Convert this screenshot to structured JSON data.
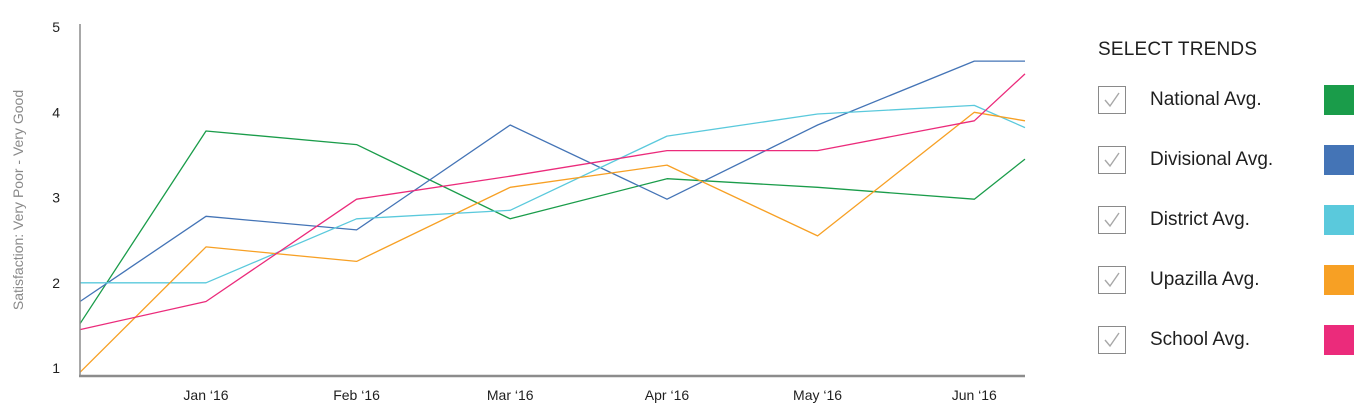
{
  "chart_data": {
    "type": "line",
    "ylabel": "Satisfaction: Very Poor - Very Good",
    "ylim": [
      1,
      5
    ],
    "yticks": [
      "1",
      "2",
      "3",
      "4",
      "5"
    ],
    "xlim": [
      0,
      6.15
    ],
    "categories": [
      "",
      "Jan ‘16",
      "Feb ‘16",
      "Mar ‘16",
      "Apr ‘16",
      "May ‘16",
      "Jun ‘16",
      ""
    ],
    "x": [
      0,
      0.82,
      1.8,
      2.8,
      3.82,
      4.8,
      5.82,
      6.15
    ],
    "grid": false,
    "legend_position": "right",
    "series": [
      {
        "name": "National Avg.",
        "color": "#1a9c4a",
        "values": [
          1.52,
          3.78,
          3.62,
          2.75,
          3.22,
          3.12,
          2.98,
          3.45
        ]
      },
      {
        "name": "Divisional Avg.",
        "color": "#4474b6",
        "values": [
          1.78,
          2.78,
          2.62,
          3.85,
          2.98,
          3.85,
          4.6,
          4.6
        ]
      },
      {
        "name": "District Avg.",
        "color": "#5ac9dc",
        "values": [
          2.0,
          2.0,
          2.75,
          2.85,
          3.72,
          3.98,
          4.08,
          3.82
        ]
      },
      {
        "name": "Upazilla Avg.",
        "color": "#f7a024",
        "values": [
          0.95,
          2.42,
          2.25,
          3.12,
          3.38,
          2.55,
          4.0,
          3.9
        ]
      },
      {
        "name": "School Avg.",
        "color": "#eb2b7b",
        "values": [
          1.45,
          1.78,
          2.98,
          3.25,
          3.55,
          3.55,
          3.9,
          4.45
        ]
      }
    ]
  },
  "legend": {
    "title": "SELECT TRENDS",
    "items": [
      {
        "label": "National Avg.",
        "color": "#1a9c4a",
        "checked": true
      },
      {
        "label": "Divisional Avg.",
        "color": "#4474b6",
        "checked": true
      },
      {
        "label": "District Avg.",
        "color": "#5ac9dc",
        "checked": true
      },
      {
        "label": "Upazilla Avg.",
        "color": "#f7a024",
        "checked": true
      },
      {
        "label": "School Avg.",
        "color": "#eb2b7b",
        "checked": true
      }
    ]
  }
}
